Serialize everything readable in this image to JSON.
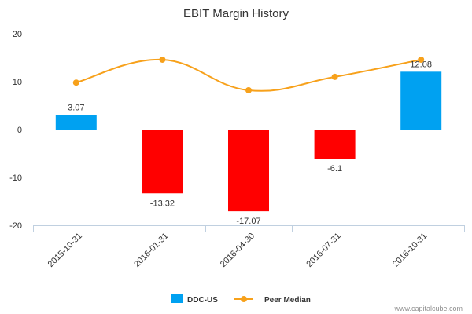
{
  "chart_data": {
    "type": "bar",
    "title": "EBIT Margin History",
    "xlabel": "",
    "ylabel": "",
    "categories": [
      "2015-10-31",
      "2016-01-31",
      "2016-04-30",
      "2016-07-31",
      "2016-10-31"
    ],
    "ylim": [
      -20,
      20
    ],
    "yticks": [
      20,
      10,
      0,
      -10,
      -20
    ],
    "grid": false,
    "legend_position": "bottom",
    "series": [
      {
        "name": "DDC-US",
        "type": "bar",
        "values": [
          3.07,
          -13.32,
          -17.07,
          -6.1,
          12.08
        ],
        "labels": [
          "3.07",
          "-13.32",
          "-17.07",
          "-6.1",
          "12.08"
        ],
        "color_positive": "#00a1f1",
        "color_negative": "#ff0000",
        "legend_color": "#00a1f1"
      },
      {
        "name": "Peer Median",
        "type": "line",
        "values": [
          9.8,
          14.6,
          8.2,
          11.0,
          14.6
        ],
        "color": "#f7a11b"
      }
    ]
  },
  "credit": "www.capitalcube.com"
}
